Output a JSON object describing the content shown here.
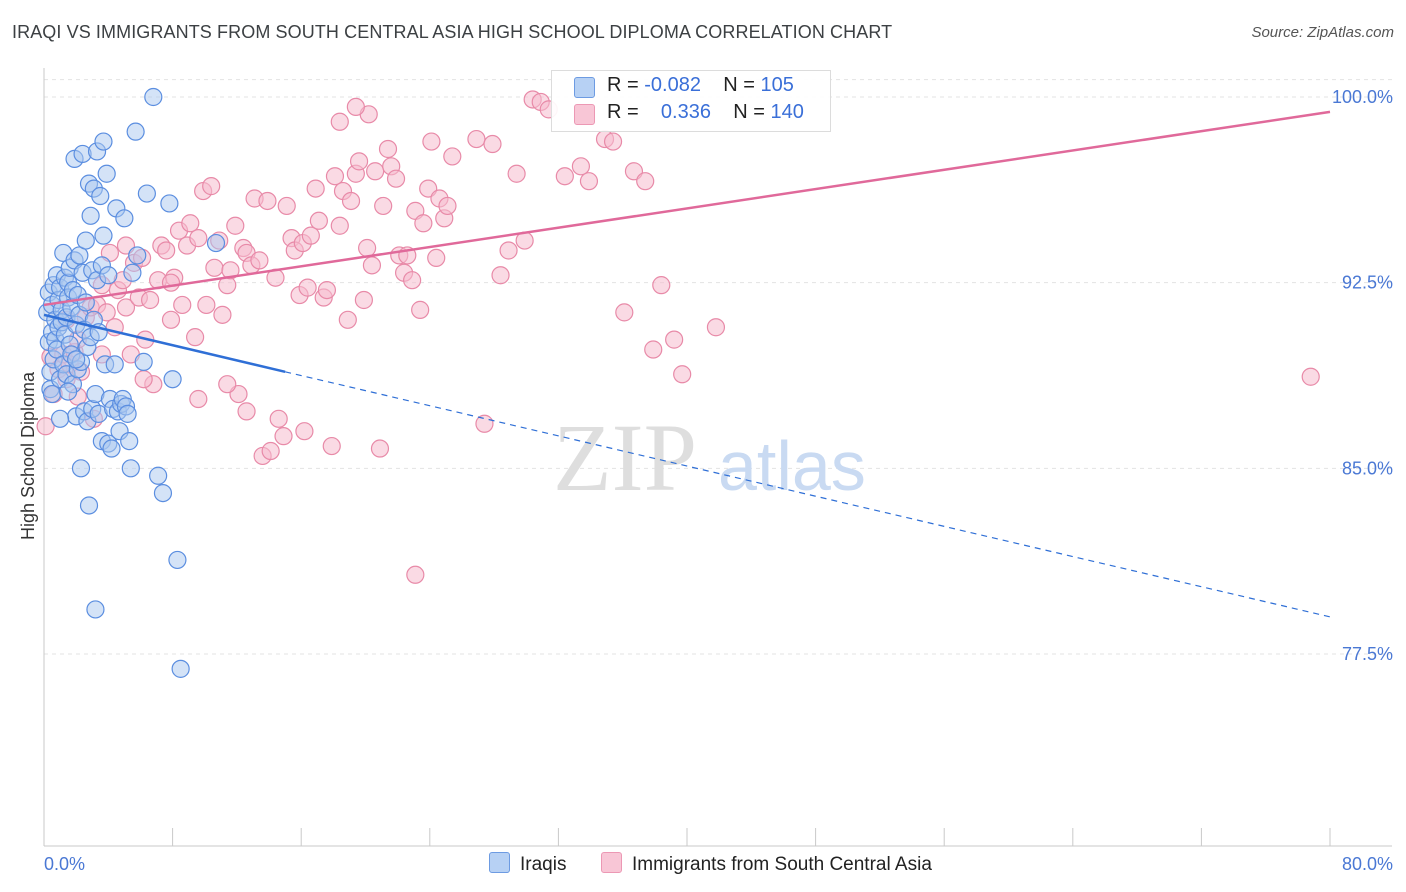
{
  "header": {
    "title": "IRAQI VS IMMIGRANTS FROM SOUTH CENTRAL ASIA HIGH SCHOOL DIPLOMA CORRELATION CHART",
    "source": "Source: ZipAtlas.com"
  },
  "legend": {
    "series1": {
      "r_label": "R = ",
      "r_value": "-0.082",
      "n_label": "N = ",
      "n_value": "105"
    },
    "series2": {
      "r_label": "R = ",
      "r_value": "0.336",
      "n_label": "N = ",
      "n_value": "140"
    }
  },
  "bottom_legend": {
    "series1": "Iraqis",
    "series2": "Immigrants from South Central Asia"
  },
  "watermark": {
    "zip": "ZIP",
    "atlas": "atlas"
  },
  "colors": {
    "blue_fill": "#aac8f0",
    "blue_stroke": "#5b8ee0",
    "blue_line": "#2f6fd6",
    "pink_fill": "#f6bccd",
    "pink_stroke": "#e88aa8",
    "pink_line": "#e0699a",
    "grid": "#e3e3e3",
    "axis_text": "#4a78d4"
  },
  "chart_data": {
    "type": "scatter",
    "title": "IRAQI VS IMMIGRANTS FROM SOUTH CENTRAL ASIA HIGH SCHOOL DIPLOMA CORRELATION CHART",
    "xlabel": "",
    "ylabel": "High School Diploma",
    "xlim": [
      0,
      80
    ],
    "ylim": [
      70.3,
      100.7
    ],
    "x_tick_labels": [
      "0.0%",
      "80.0%"
    ],
    "y_ticks": [
      77.5,
      85.0,
      92.5,
      100.0
    ],
    "y_tick_labels": [
      "77.5%",
      "85.0%",
      "92.5%",
      "100.0%"
    ],
    "grid": true,
    "series": [
      {
        "name": "Iraqis",
        "r": -0.082,
        "n": 105,
        "trend": {
          "x0": 0,
          "y0": 91.2,
          "x_solid_end": 15,
          "y_solid_end": 88.9,
          "x1": 80,
          "y1": 79.0
        },
        "points": [
          [
            0.2,
            91.3
          ],
          [
            0.3,
            90.1
          ],
          [
            0.3,
            92.1
          ],
          [
            0.4,
            88.9
          ],
          [
            0.4,
            88.2
          ],
          [
            0.5,
            91.6
          ],
          [
            0.5,
            90.5
          ],
          [
            0.6,
            92.4
          ],
          [
            0.6,
            89.4
          ],
          [
            0.7,
            91.0
          ],
          [
            0.7,
            90.2
          ],
          [
            0.8,
            92.8
          ],
          [
            0.8,
            89.8
          ],
          [
            0.9,
            91.8
          ],
          [
            0.9,
            90.7
          ],
          [
            1.0,
            92.3
          ],
          [
            1.0,
            88.6
          ],
          [
            1.1,
            91.4
          ],
          [
            1.1,
            90.9
          ],
          [
            1.2,
            93.7
          ],
          [
            1.2,
            89.2
          ],
          [
            1.3,
            92.7
          ],
          [
            1.3,
            90.4
          ],
          [
            1.4,
            91.1
          ],
          [
            1.4,
            88.8
          ],
          [
            1.5,
            92.5
          ],
          [
            1.5,
            91.9
          ],
          [
            1.6,
            93.1
          ],
          [
            1.6,
            90.0
          ],
          [
            1.7,
            91.5
          ],
          [
            1.7,
            89.6
          ],
          [
            1.8,
            92.2
          ],
          [
            1.8,
            88.4
          ],
          [
            1.9,
            97.5
          ],
          [
            1.9,
            93.4
          ],
          [
            2.0,
            90.8
          ],
          [
            2.0,
            87.1
          ],
          [
            2.1,
            92.0
          ],
          [
            2.1,
            89.0
          ],
          [
            2.2,
            93.6
          ],
          [
            2.2,
            91.2
          ],
          [
            2.3,
            85.0
          ],
          [
            2.3,
            89.3
          ],
          [
            2.4,
            97.7
          ],
          [
            2.4,
            92.9
          ],
          [
            2.5,
            90.6
          ],
          [
            2.5,
            87.3
          ],
          [
            2.6,
            94.2
          ],
          [
            2.6,
            91.7
          ],
          [
            2.7,
            86.9
          ],
          [
            2.7,
            89.9
          ],
          [
            2.8,
            96.5
          ],
          [
            2.8,
            83.5
          ],
          [
            2.9,
            95.2
          ],
          [
            2.9,
            90.3
          ],
          [
            3.0,
            93.0
          ],
          [
            3.0,
            87.4
          ],
          [
            3.1,
            96.3
          ],
          [
            3.1,
            91.0
          ],
          [
            3.2,
            88.0
          ],
          [
            3.2,
            79.3
          ],
          [
            3.3,
            97.8
          ],
          [
            3.3,
            92.6
          ],
          [
            3.4,
            90.5
          ],
          [
            3.4,
            87.2
          ],
          [
            3.5,
            96.0
          ],
          [
            3.6,
            93.2
          ],
          [
            3.6,
            86.1
          ],
          [
            3.7,
            94.4
          ],
          [
            3.7,
            98.2
          ],
          [
            3.8,
            89.2
          ],
          [
            3.9,
            96.9
          ],
          [
            4.0,
            92.8
          ],
          [
            4.0,
            86.0
          ],
          [
            4.1,
            87.8
          ],
          [
            4.2,
            85.8
          ],
          [
            4.3,
            87.4
          ],
          [
            4.4,
            89.2
          ],
          [
            4.5,
            95.5
          ],
          [
            4.6,
            87.3
          ],
          [
            4.7,
            86.5
          ],
          [
            4.8,
            87.6
          ],
          [
            4.9,
            87.8
          ],
          [
            5.0,
            95.1
          ],
          [
            5.1,
            87.5
          ],
          [
            5.2,
            87.2
          ],
          [
            5.3,
            86.1
          ],
          [
            5.4,
            85.0
          ],
          [
            5.5,
            92.9
          ],
          [
            5.7,
            98.6
          ],
          [
            5.8,
            93.6
          ],
          [
            6.2,
            89.3
          ],
          [
            6.4,
            96.1
          ],
          [
            6.8,
            100.0
          ],
          [
            7.1,
            84.7
          ],
          [
            7.4,
            84.0
          ],
          [
            7.8,
            95.7
          ],
          [
            8.0,
            88.6
          ],
          [
            8.3,
            81.3
          ],
          [
            8.5,
            76.9
          ],
          [
            10.7,
            94.1
          ],
          [
            0.5,
            88.0
          ],
          [
            1.0,
            87.0
          ],
          [
            1.5,
            88.1
          ],
          [
            2.0,
            89.4
          ]
        ]
      },
      {
        "name": "Immigrants from South Central Asia",
        "r": 0.336,
        "n": 140,
        "trend": {
          "x0": 0,
          "y0": 91.6,
          "x1": 80,
          "y1": 99.4
        },
        "points": [
          [
            0.1,
            86.7
          ],
          [
            0.4,
            89.5
          ],
          [
            0.6,
            88.0
          ],
          [
            0.9,
            89.0
          ],
          [
            1.2,
            89.6
          ],
          [
            1.4,
            88.6
          ],
          [
            1.6,
            89.2
          ],
          [
            1.9,
            89.7
          ],
          [
            2.1,
            90.2
          ],
          [
            2.3,
            88.9
          ],
          [
            2.6,
            91.1
          ],
          [
            2.9,
            91.5
          ],
          [
            3.1,
            87.0
          ],
          [
            3.3,
            91.6
          ],
          [
            3.6,
            92.4
          ],
          [
            3.9,
            91.3
          ],
          [
            4.1,
            93.7
          ],
          [
            4.4,
            90.7
          ],
          [
            4.6,
            92.2
          ],
          [
            4.9,
            92.6
          ],
          [
            5.1,
            91.5
          ],
          [
            5.4,
            89.6
          ],
          [
            5.6,
            93.3
          ],
          [
            5.9,
            91.9
          ],
          [
            6.1,
            93.5
          ],
          [
            6.3,
            90.2
          ],
          [
            6.6,
            91.8
          ],
          [
            6.8,
            88.4
          ],
          [
            7.1,
            92.6
          ],
          [
            7.3,
            94.0
          ],
          [
            7.6,
            93.8
          ],
          [
            7.9,
            91.0
          ],
          [
            8.1,
            92.7
          ],
          [
            8.4,
            94.6
          ],
          [
            8.6,
            91.6
          ],
          [
            8.9,
            94.0
          ],
          [
            9.1,
            94.9
          ],
          [
            9.4,
            90.3
          ],
          [
            9.6,
            94.3
          ],
          [
            9.9,
            96.2
          ],
          [
            10.1,
            91.6
          ],
          [
            10.4,
            96.4
          ],
          [
            10.6,
            93.1
          ],
          [
            10.9,
            94.2
          ],
          [
            11.1,
            91.2
          ],
          [
            11.4,
            92.4
          ],
          [
            11.6,
            93.0
          ],
          [
            11.9,
            94.8
          ],
          [
            12.1,
            88.0
          ],
          [
            12.4,
            93.9
          ],
          [
            12.6,
            93.7
          ],
          [
            12.9,
            93.2
          ],
          [
            13.1,
            95.9
          ],
          [
            13.4,
            93.4
          ],
          [
            13.6,
            85.5
          ],
          [
            13.9,
            95.8
          ],
          [
            14.1,
            85.7
          ],
          [
            14.4,
            92.7
          ],
          [
            14.6,
            87.0
          ],
          [
            14.9,
            86.3
          ],
          [
            15.1,
            95.6
          ],
          [
            15.4,
            94.3
          ],
          [
            15.6,
            93.8
          ],
          [
            15.9,
            92.0
          ],
          [
            16.1,
            94.1
          ],
          [
            16.4,
            92.3
          ],
          [
            16.6,
            94.4
          ],
          [
            16.9,
            96.3
          ],
          [
            17.1,
            95.0
          ],
          [
            17.4,
            91.9
          ],
          [
            17.6,
            92.2
          ],
          [
            17.9,
            85.9
          ],
          [
            18.1,
            96.8
          ],
          [
            18.4,
            94.8
          ],
          [
            18.6,
            96.2
          ],
          [
            18.9,
            91.0
          ],
          [
            19.1,
            95.8
          ],
          [
            19.4,
            96.9
          ],
          [
            19.6,
            97.4
          ],
          [
            19.9,
            91.8
          ],
          [
            20.1,
            93.9
          ],
          [
            20.4,
            93.2
          ],
          [
            20.6,
            97.0
          ],
          [
            20.9,
            85.8
          ],
          [
            21.1,
            95.6
          ],
          [
            21.4,
            97.9
          ],
          [
            21.6,
            97.2
          ],
          [
            21.9,
            96.7
          ],
          [
            22.1,
            93.6
          ],
          [
            22.4,
            92.9
          ],
          [
            22.6,
            93.6
          ],
          [
            22.9,
            92.6
          ],
          [
            23.1,
            95.4
          ],
          [
            23.4,
            91.4
          ],
          [
            23.6,
            94.9
          ],
          [
            23.9,
            96.3
          ],
          [
            24.1,
            98.2
          ],
          [
            24.4,
            93.5
          ],
          [
            24.6,
            95.9
          ],
          [
            24.9,
            95.1
          ],
          [
            25.1,
            95.6
          ],
          [
            25.4,
            97.6
          ],
          [
            26.9,
            98.3
          ],
          [
            27.4,
            86.8
          ],
          [
            27.9,
            98.1
          ],
          [
            28.4,
            92.8
          ],
          [
            28.9,
            93.8
          ],
          [
            29.4,
            96.9
          ],
          [
            29.9,
            94.2
          ],
          [
            30.4,
            99.9
          ],
          [
            30.9,
            99.8
          ],
          [
            31.4,
            99.5
          ],
          [
            32.4,
            96.8
          ],
          [
            33.4,
            97.2
          ],
          [
            33.9,
            96.6
          ],
          [
            34.9,
            98.3
          ],
          [
            35.4,
            98.2
          ],
          [
            36.1,
            91.3
          ],
          [
            36.7,
            97.0
          ],
          [
            37.4,
            96.6
          ],
          [
            37.9,
            89.8
          ],
          [
            38.4,
            92.4
          ],
          [
            39.2,
            90.2
          ],
          [
            39.7,
            88.8
          ],
          [
            41.8,
            90.7
          ],
          [
            78.8,
            88.7
          ],
          [
            20.2,
            99.3
          ],
          [
            19.4,
            99.6
          ],
          [
            18.4,
            99.0
          ],
          [
            6.2,
            88.6
          ],
          [
            12.6,
            87.3
          ],
          [
            16.2,
            86.5
          ],
          [
            23.1,
            80.7
          ],
          [
            11.4,
            88.4
          ],
          [
            9.6,
            87.8
          ],
          [
            7.9,
            92.5
          ],
          [
            5.1,
            94.0
          ],
          [
            3.6,
            89.6
          ],
          [
            2.1,
            87.9
          ],
          [
            1.4,
            91.0
          ]
        ]
      }
    ]
  }
}
